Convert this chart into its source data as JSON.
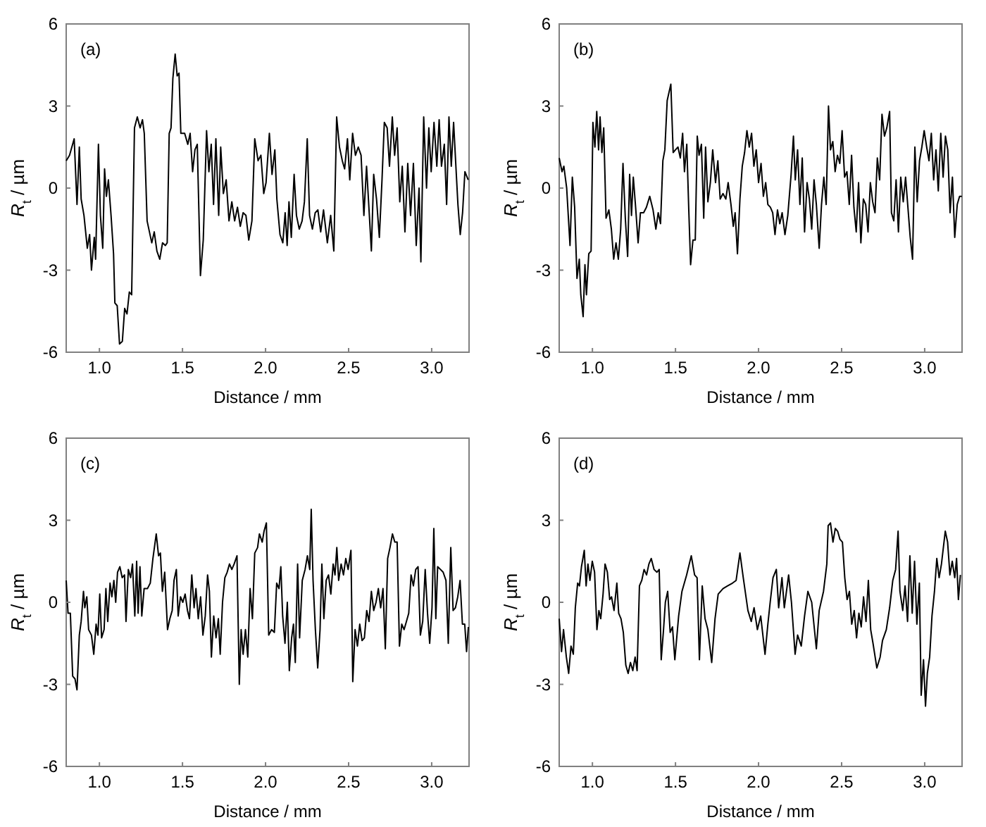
{
  "chart_data": [
    {
      "type": "line",
      "annotations": [
        "(a)"
      ],
      "xlabel": "Distance / mm",
      "ylabel": "R$_{t}$ / µm",
      "xlim": [
        0.8,
        3.225
      ],
      "ylim": [
        -6,
        6
      ],
      "xticks": [
        {
          "value": 1,
          "label": "1.0"
        },
        {
          "value": 1.5,
          "label": "1.5"
        },
        {
          "value": 2,
          "label": "2.0"
        },
        {
          "value": 2.5,
          "label": "2.5"
        },
        {
          "value": 3,
          "label": "3.0"
        }
      ],
      "yticks": [
        -6,
        -3,
        0,
        3,
        6
      ],
      "series": [
        {
          "color": "#000000",
          "x": [
            0.8,
            0.82,
            0.848,
            0.865,
            0.879,
            0.89,
            0.907,
            0.927,
            0.941,
            0.952,
            0.969,
            0.977,
            0.994,
            1.006,
            1.02,
            1.031,
            1.042,
            1.054,
            1.07,
            1.085,
            1.093,
            1.107,
            1.121,
            1.138,
            1.152,
            1.166,
            1.18,
            1.194,
            1.211,
            1.228,
            1.245,
            1.259,
            1.27,
            1.287,
            1.301,
            1.315,
            1.33,
            1.346,
            1.363,
            1.38,
            1.397,
            1.408,
            1.42,
            1.431,
            1.442,
            1.456,
            1.468,
            1.479,
            1.49,
            1.513,
            1.532,
            1.546,
            1.561,
            1.575,
            1.589,
            1.608,
            1.625,
            1.645,
            1.659,
            1.673,
            1.687,
            1.701,
            1.718,
            1.73,
            1.746,
            1.763,
            1.78,
            1.797,
            1.814,
            1.831,
            1.848,
            1.865,
            1.882,
            1.899,
            1.918,
            1.935,
            1.955,
            1.972,
            1.989,
            2.003,
            2.023,
            2.039,
            2.056,
            2.068,
            2.087,
            2.104,
            2.118,
            2.13,
            2.141,
            2.155,
            2.172,
            2.186,
            2.203,
            2.22,
            2.234,
            2.251,
            2.265,
            2.282,
            2.299,
            2.315,
            2.332,
            2.349,
            2.372,
            2.392,
            2.411,
            2.428,
            2.445,
            2.462,
            2.476,
            2.493,
            2.507,
            2.524,
            2.541,
            2.558,
            2.575,
            2.592,
            2.608,
            2.623,
            2.637,
            2.651,
            2.668,
            2.685,
            2.701,
            2.715,
            2.732,
            2.746,
            2.763,
            2.777,
            2.792,
            2.808,
            2.823,
            2.839,
            2.856,
            2.873,
            2.89,
            2.907,
            2.924,
            2.935,
            2.952,
            2.969,
            2.983,
            2.997,
            3.014,
            3.031,
            3.045,
            3.059,
            3.076,
            3.09,
            3.104,
            3.118,
            3.132,
            3.144,
            3.158,
            3.172,
            3.186,
            3.2,
            3.22
          ],
          "values": [
            1.0,
            1.2,
            1.8,
            -0.6,
            1.5,
            -0.4,
            -1.0,
            -2.2,
            -1.7,
            -3.0,
            -1.8,
            -2.6,
            1.6,
            -1.0,
            -2.2,
            0.7,
            -0.3,
            0.3,
            -1.0,
            -2.4,
            -4.2,
            -4.3,
            -5.7,
            -5.6,
            -4.4,
            -4.6,
            -3.8,
            -3.9,
            2.2,
            2.6,
            2.2,
            2.5,
            2.0,
            -1.2,
            -1.6,
            -2.0,
            -1.6,
            -2.3,
            -2.6,
            -2.0,
            -2.1,
            -2.0,
            2.0,
            2.2,
            4.0,
            4.9,
            4.1,
            4.2,
            2.0,
            2.0,
            1.6,
            2.0,
            0.6,
            1.4,
            1.6,
            -3.2,
            -1.9,
            2.1,
            0.6,
            1.6,
            -0.6,
            1.8,
            -1.0,
            1.5,
            -0.2,
            0.3,
            -1.2,
            -0.5,
            -1.2,
            -0.7,
            -1.4,
            -0.9,
            -1.0,
            -1.9,
            -1.2,
            1.8,
            1.0,
            1.2,
            -0.2,
            0.2,
            2.0,
            0.5,
            1.4,
            -0.4,
            -1.7,
            -2.0,
            -0.9,
            -2.1,
            -0.5,
            -1.8,
            0.5,
            -1.0,
            -1.5,
            -1.2,
            -0.5,
            1.8,
            -1.0,
            -1.5,
            -0.9,
            -0.8,
            -1.6,
            -0.8,
            -2.0,
            -1.0,
            -2.3,
            2.6,
            1.5,
            1.0,
            0.7,
            1.8,
            0.3,
            2.0,
            1.2,
            1.5,
            1.2,
            -1.0,
            0.8,
            -0.8,
            -2.3,
            0.5,
            -0.4,
            -1.8,
            0.3,
            2.4,
            2.2,
            0.8,
            2.6,
            1.2,
            2.2,
            -0.5,
            0.8,
            -1.6,
            0.9,
            -1.0,
            0.9,
            -2.1,
            0.0,
            -2.7,
            2.6,
            0.0,
            2.2,
            0.6,
            2.4,
            0.8,
            2.5,
            0.8,
            1.6,
            -0.6,
            2.6,
            0.8,
            2.4,
            1.0,
            -0.6,
            -1.7,
            -0.9,
            0.6,
            0.3
          ]
        }
      ]
    },
    {
      "type": "line",
      "annotations": [
        "(b)"
      ],
      "xlabel": "Distance / mm",
      "ylabel": "R$_{t}$ / µm",
      "xlim": [
        0.8,
        3.225
      ],
      "ylim": [
        -6,
        6
      ],
      "xticks": [
        {
          "value": 1,
          "label": "1.0"
        },
        {
          "value": 1.5,
          "label": "1.5"
        },
        {
          "value": 2,
          "label": "2.0"
        },
        {
          "value": 2.5,
          "label": "2.5"
        },
        {
          "value": 3,
          "label": "3.0"
        }
      ],
      "yticks": [
        -6,
        -3,
        0,
        3,
        6
      ],
      "series": [
        {
          "color": "#000000",
          "x": [
            0.8,
            0.817,
            0.828,
            0.845,
            0.865,
            0.879,
            0.893,
            0.907,
            0.921,
            0.93,
            0.944,
            0.955,
            0.964,
            0.978,
            0.992,
            1.003,
            1.015,
            1.026,
            1.037,
            1.046,
            1.057,
            1.068,
            1.082,
            1.099,
            1.114,
            1.128,
            1.142,
            1.156,
            1.17,
            1.184,
            1.198,
            1.212,
            1.224,
            1.235,
            1.246,
            1.26,
            1.275,
            1.289,
            1.308,
            1.325,
            1.345,
            1.365,
            1.382,
            1.396,
            1.41,
            1.424,
            1.436,
            1.45,
            1.472,
            1.486,
            1.5,
            1.515,
            1.529,
            1.543,
            1.554,
            1.568,
            1.58,
            1.591,
            1.605,
            1.619,
            1.631,
            1.642,
            1.656,
            1.67,
            1.681,
            1.695,
            1.71,
            1.724,
            1.741,
            1.755,
            1.769,
            1.786,
            1.803,
            1.817,
            1.834,
            1.848,
            1.859,
            1.873,
            1.888,
            1.902,
            1.916,
            1.93,
            1.944,
            1.958,
            1.972,
            1.986,
            2.0,
            2.015,
            2.029,
            2.043,
            2.056,
            2.071,
            2.085,
            2.099,
            2.114,
            2.128,
            2.142,
            2.159,
            2.176,
            2.196,
            2.21,
            2.221,
            2.235,
            2.249,
            2.263,
            2.277,
            2.292,
            2.306,
            2.32,
            2.334,
            2.348,
            2.365,
            2.379,
            2.393,
            2.407,
            2.421,
            2.433,
            2.447,
            2.461,
            2.475,
            2.489,
            2.503,
            2.518,
            2.532,
            2.546,
            2.56,
            2.574,
            2.588,
            2.602,
            2.616,
            2.631,
            2.645,
            2.659,
            2.673,
            2.687,
            2.701,
            2.715,
            2.729,
            2.743,
            2.758,
            2.772,
            2.789,
            2.8,
            2.814,
            2.828,
            2.842,
            2.856,
            2.871,
            2.885,
            2.899,
            2.913,
            2.927,
            2.941,
            2.955,
            2.969,
            2.983,
            2.997,
            3.012,
            3.026,
            3.04,
            3.054,
            3.068,
            3.082,
            3.097,
            3.111,
            3.125,
            3.139,
            3.153,
            3.167,
            3.181,
            3.196,
            3.21,
            3.224
          ],
          "values": [
            1.1,
            0.6,
            0.8,
            0.0,
            -2.1,
            0.4,
            -0.7,
            -3.3,
            -2.6,
            -3.9,
            -4.7,
            -2.8,
            -3.9,
            -2.4,
            -2.3,
            2.4,
            1.5,
            2.8,
            1.4,
            2.6,
            1.3,
            2.2,
            -1.1,
            -0.8,
            -1.5,
            -2.6,
            -2.0,
            -2.6,
            -1.5,
            0.9,
            -1.1,
            -2.5,
            0.5,
            -1.0,
            0.4,
            -0.7,
            -2.0,
            -0.9,
            -0.9,
            -0.7,
            -0.3,
            -0.8,
            -1.5,
            -0.9,
            -1.3,
            1.0,
            1.4,
            3.2,
            3.8,
            1.3,
            1.4,
            1.5,
            1.1,
            2.0,
            0.6,
            1.6,
            -0.8,
            -2.8,
            -1.9,
            -1.9,
            1.9,
            1.2,
            1.6,
            -1.1,
            1.5,
            -0.5,
            0.2,
            1.4,
            0.2,
            1.0,
            -0.4,
            -0.2,
            -0.4,
            0.2,
            -0.6,
            -1.4,
            -0.9,
            -2.4,
            -0.4,
            0.8,
            1.3,
            2.1,
            1.5,
            2.0,
            0.8,
            1.4,
            0.2,
            0.9,
            -0.3,
            0.2,
            -0.6,
            -0.7,
            -0.9,
            -1.7,
            -0.8,
            -1.3,
            -0.9,
            -1.7,
            -1.0,
            0.5,
            1.9,
            0.3,
            1.4,
            -0.6,
            1.1,
            -1.6,
            0.2,
            -0.4,
            -1.5,
            0.3,
            -0.6,
            -2.2,
            -0.6,
            0.4,
            -0.6,
            3.0,
            1.4,
            1.7,
            0.6,
            1.2,
            0.9,
            2.1,
            0.4,
            0.6,
            -0.6,
            1.2,
            -0.7,
            -1.6,
            0.2,
            -2.0,
            -0.4,
            -0.6,
            -1.6,
            0.2,
            -0.5,
            -0.9,
            1.1,
            0.3,
            2.7,
            1.9,
            2.2,
            2.8,
            -0.9,
            -1.2,
            0.3,
            -1.6,
            0.4,
            -0.5,
            0.4,
            -0.7,
            -1.8,
            -2.6,
            1.5,
            -0.5,
            1.0,
            1.5,
            2.1,
            1.5,
            1.0,
            2.0,
            0.3,
            1.4,
            -0.1,
            2.0,
            0.4,
            1.9,
            1.4,
            -0.9,
            0.4,
            -1.8,
            -0.6,
            -0.3,
            -0.3
          ]
        }
      ]
    },
    {
      "type": "line",
      "annotations": [
        "(c)"
      ],
      "xlabel": "Distance / mm",
      "ylabel": "R$_{t}$ / µm",
      "xlim": [
        0.8,
        3.225
      ],
      "ylim": [
        -6,
        6
      ],
      "xticks": [
        {
          "value": 1,
          "label": "1.0"
        },
        {
          "value": 1.5,
          "label": "1.5"
        },
        {
          "value": 2,
          "label": "2.0"
        },
        {
          "value": 2.5,
          "label": "2.5"
        },
        {
          "value": 3,
          "label": "3.0"
        }
      ],
      "yticks": [
        -6,
        -3,
        0,
        3,
        6
      ],
      "series": [
        {
          "color": "#000000",
          "x": [
            0.8,
            0.811,
            0.825,
            0.839,
            0.853,
            0.865,
            0.879,
            0.89,
            0.904,
            0.912,
            0.924,
            0.935,
            0.952,
            0.966,
            0.98,
            0.991,
            1.002,
            1.013,
            1.028,
            1.039,
            1.05,
            1.064,
            1.075,
            1.087,
            1.098,
            1.109,
            1.123,
            1.137,
            1.151,
            1.16,
            1.174,
            1.188,
            1.199,
            1.213,
            1.224,
            1.233,
            1.244,
            1.255,
            1.269,
            1.289,
            1.306,
            1.322,
            1.342,
            1.356,
            1.367,
            1.379,
            1.393,
            1.41,
            1.424,
            1.438,
            1.449,
            1.463,
            1.474,
            1.488,
            1.502,
            1.516,
            1.53,
            1.542,
            1.556,
            1.57,
            1.581,
            1.595,
            1.609,
            1.623,
            1.637,
            1.651,
            1.662,
            1.674,
            1.688,
            1.702,
            1.716,
            1.727,
            1.741,
            1.755,
            1.769,
            1.783,
            1.797,
            1.811,
            1.828,
            1.842,
            1.853,
            1.865,
            1.879,
            1.893,
            1.907,
            1.921,
            1.935,
            1.952,
            1.963,
            1.98,
            1.991,
            2.005,
            2.019,
            2.036,
            2.053,
            2.067,
            2.081,
            2.092,
            2.103,
            2.117,
            2.131,
            2.143,
            2.157,
            2.168,
            2.179,
            2.193,
            2.205,
            2.221,
            2.238,
            2.252,
            2.266,
            2.275,
            2.286,
            2.3,
            2.314,
            2.328,
            2.339,
            2.351,
            2.365,
            2.379,
            2.393,
            2.407,
            2.418,
            2.429,
            2.44,
            2.455,
            2.469,
            2.483,
            2.497,
            2.514,
            2.525,
            2.539,
            2.553,
            2.567,
            2.581,
            2.595,
            2.609,
            2.623,
            2.637,
            2.651,
            2.665,
            2.679,
            2.693,
            2.707,
            2.721,
            2.735,
            2.749,
            2.764,
            2.778,
            2.792,
            2.806,
            2.82,
            2.834,
            2.848,
            2.862,
            2.876,
            2.89,
            2.904,
            2.918,
            2.932,
            2.946,
            2.961,
            2.975,
            2.988,
            3.002,
            3.013,
            3.025,
            3.036,
            3.053,
            3.069,
            3.086,
            3.1,
            3.115,
            3.129,
            3.143,
            3.157,
            3.171,
            3.185,
            3.199,
            3.21,
            3.221
          ],
          "values": [
            0.8,
            -0.4,
            -0.4,
            -2.7,
            -2.8,
            -3.2,
            -1.2,
            -0.7,
            0.4,
            -0.2,
            0.2,
            -1.0,
            -1.2,
            -1.9,
            -0.8,
            -1.2,
            0.3,
            -1.3,
            -1.0,
            0.5,
            -0.7,
            0.7,
            0.2,
            0.8,
            0.0,
            1.1,
            1.3,
            0.9,
            1.0,
            -0.7,
            1.2,
            0.9,
            1.4,
            -0.5,
            1.5,
            -0.4,
            1.3,
            -0.5,
            0.5,
            0.5,
            0.7,
            1.6,
            2.5,
            1.7,
            1.8,
            0.4,
            1.1,
            -1.0,
            -0.6,
            -0.3,
            0.8,
            1.2,
            -0.5,
            0.2,
            0.0,
            0.3,
            -0.3,
            -0.6,
            1.0,
            -0.2,
            0.5,
            -0.6,
            0.2,
            -1.2,
            -0.5,
            1.0,
            0.4,
            -2.0,
            -0.5,
            -1.3,
            -0.6,
            -1.9,
            0.0,
            0.9,
            1.1,
            1.4,
            1.2,
            1.4,
            1.7,
            -3.0,
            -1.0,
            -1.9,
            -1.0,
            -2.0,
            0.5,
            -0.6,
            1.8,
            2.0,
            2.5,
            2.2,
            2.6,
            2.9,
            -1.2,
            -1.0,
            -1.1,
            0.7,
            0.5,
            1.3,
            -0.5,
            -1.5,
            0.0,
            -2.5,
            -1.3,
            -0.8,
            -2.2,
            1.4,
            -1.3,
            0.8,
            1.2,
            1.7,
            1.2,
            3.4,
            0.8,
            -1.0,
            -2.4,
            -1.0,
            1.4,
            -0.6,
            0.8,
            1.0,
            0.3,
            1.4,
            1.0,
            2.0,
            0.8,
            1.4,
            1.0,
            1.6,
            1.2,
            1.9,
            -2.9,
            -1.0,
            -1.6,
            -0.8,
            -1.4,
            -1.3,
            -0.3,
            -0.7,
            0.4,
            -0.3,
            0.0,
            0.5,
            -0.2,
            0.5,
            -1.7,
            1.6,
            2.0,
            2.5,
            2.2,
            2.2,
            -1.6,
            -0.8,
            -1.0,
            -0.7,
            -0.4,
            1.0,
            0.6,
            1.2,
            1.3,
            -1.2,
            -0.7,
            1.2,
            -0.4,
            -1.5,
            -0.2,
            2.7,
            -0.6,
            1.3,
            1.2,
            1.1,
            0.8,
            -1.5,
            2.0,
            -0.3,
            -0.2,
            0.2,
            0.8,
            -0.8,
            -0.8,
            -1.8,
            -0.9
          ]
        }
      ]
    },
    {
      "type": "line",
      "annotations": [
        "(d)"
      ],
      "xlabel": "Distance / mm",
      "ylabel": "R$_{t}$ / µm",
      "xlim": [
        0.8,
        3.225
      ],
      "ylim": [
        -6,
        6
      ],
      "xticks": [
        {
          "value": 1,
          "label": "1.0"
        },
        {
          "value": 1.5,
          "label": "1.5"
        },
        {
          "value": 2,
          "label": "2.0"
        },
        {
          "value": 2.5,
          "label": "2.5"
        },
        {
          "value": 3,
          "label": "3.0"
        }
      ],
      "yticks": [
        -6,
        -3,
        0,
        3,
        6
      ],
      "series": [
        {
          "color": "#000000",
          "x": [
            0.8,
            0.814,
            0.826,
            0.843,
            0.857,
            0.871,
            0.885,
            0.897,
            0.911,
            0.922,
            0.934,
            0.951,
            0.962,
            0.973,
            0.985,
            0.999,
            1.013,
            1.027,
            1.039,
            1.05,
            1.064,
            1.076,
            1.09,
            1.104,
            1.115,
            1.13,
            1.147,
            1.158,
            1.172,
            1.186,
            1.201,
            1.215,
            1.229,
            1.243,
            1.257,
            1.269,
            1.283,
            1.297,
            1.311,
            1.326,
            1.34,
            1.354,
            1.371,
            1.388,
            1.402,
            1.414,
            1.428,
            1.439,
            1.453,
            1.468,
            1.482,
            1.496,
            1.519,
            1.539,
            1.567,
            1.595,
            1.615,
            1.63,
            1.644,
            1.661,
            1.678,
            1.695,
            1.718,
            1.738,
            1.757,
            1.786,
            1.814,
            1.843,
            1.865,
            1.888,
            1.908,
            1.936,
            1.956,
            1.973,
            1.993,
            2.013,
            2.039,
            2.056,
            2.07,
            2.087,
            2.107,
            2.121,
            2.141,
            2.155,
            2.181,
            2.198,
            2.22,
            2.235,
            2.257,
            2.277,
            2.297,
            2.32,
            2.348,
            2.365,
            2.391,
            2.411,
            2.419,
            2.433,
            2.448,
            2.462,
            2.476,
            2.49,
            2.505,
            2.519,
            2.533,
            2.547,
            2.561,
            2.576,
            2.59,
            2.604,
            2.618,
            2.632,
            2.647,
            2.661,
            2.675,
            2.689,
            2.712,
            2.732,
            2.746,
            2.769,
            2.789,
            2.808,
            2.825,
            2.84,
            2.851,
            2.868,
            2.882,
            2.897,
            2.911,
            2.925,
            2.939,
            2.953,
            2.968,
            2.979,
            2.993,
            3.005,
            3.016,
            3.03,
            3.044,
            3.059,
            3.073,
            3.087,
            3.101,
            3.124,
            3.138,
            3.152,
            3.166,
            3.181,
            3.192,
            3.203,
            3.215
          ],
          "values": [
            -0.6,
            -1.8,
            -1.0,
            -2.0,
            -2.6,
            -1.6,
            -1.9,
            -0.2,
            0.7,
            0.6,
            1.3,
            1.9,
            0.6,
            1.4,
            0.8,
            1.5,
            1.1,
            -1.0,
            -0.3,
            -0.6,
            0.3,
            1.4,
            1.1,
            0.1,
            0.2,
            -0.3,
            0.7,
            -0.4,
            -0.6,
            -1.1,
            -2.3,
            -2.6,
            -2.2,
            -2.5,
            -2.0,
            -2.5,
            0.6,
            0.8,
            1.2,
            1.0,
            1.4,
            1.6,
            1.2,
            1.1,
            1.2,
            -2.1,
            -1.0,
            0.0,
            0.4,
            -1.1,
            -0.9,
            -2.1,
            -0.5,
            0.4,
            1.0,
            1.7,
            1.0,
            0.9,
            -2.1,
            0.6,
            -0.6,
            -1.0,
            -2.2,
            -0.6,
            0.3,
            0.5,
            0.6,
            0.7,
            0.8,
            1.8,
            0.9,
            -0.3,
            -0.7,
            -0.2,
            -1.0,
            -0.5,
            -1.9,
            -0.8,
            0.0,
            0.9,
            1.2,
            -0.2,
            0.9,
            -0.2,
            1.0,
            0.0,
            -1.9,
            -1.2,
            -1.6,
            -0.5,
            0.4,
            0.0,
            -1.7,
            -0.3,
            0.4,
            1.4,
            2.8,
            2.9,
            2.2,
            2.7,
            2.6,
            2.3,
            2.2,
            0.9,
            0.1,
            0.4,
            -0.8,
            -0.3,
            -1.3,
            -0.4,
            -0.9,
            0.2,
            -0.7,
            0.8,
            -1.0,
            -1.5,
            -2.4,
            -2.0,
            -1.4,
            -1.0,
            -0.2,
            0.8,
            1.2,
            2.6,
            0.4,
            -0.3,
            0.6,
            -0.7,
            1.7,
            -0.4,
            1.5,
            -0.8,
            0.7,
            -3.4,
            -2.1,
            -3.8,
            -2.6,
            -2.0,
            -0.5,
            0.4,
            1.6,
            0.9,
            1.4,
            2.6,
            2.2,
            1.0,
            1.5,
            0.9,
            1.6,
            0.1,
            1.0
          ]
        }
      ]
    }
  ]
}
